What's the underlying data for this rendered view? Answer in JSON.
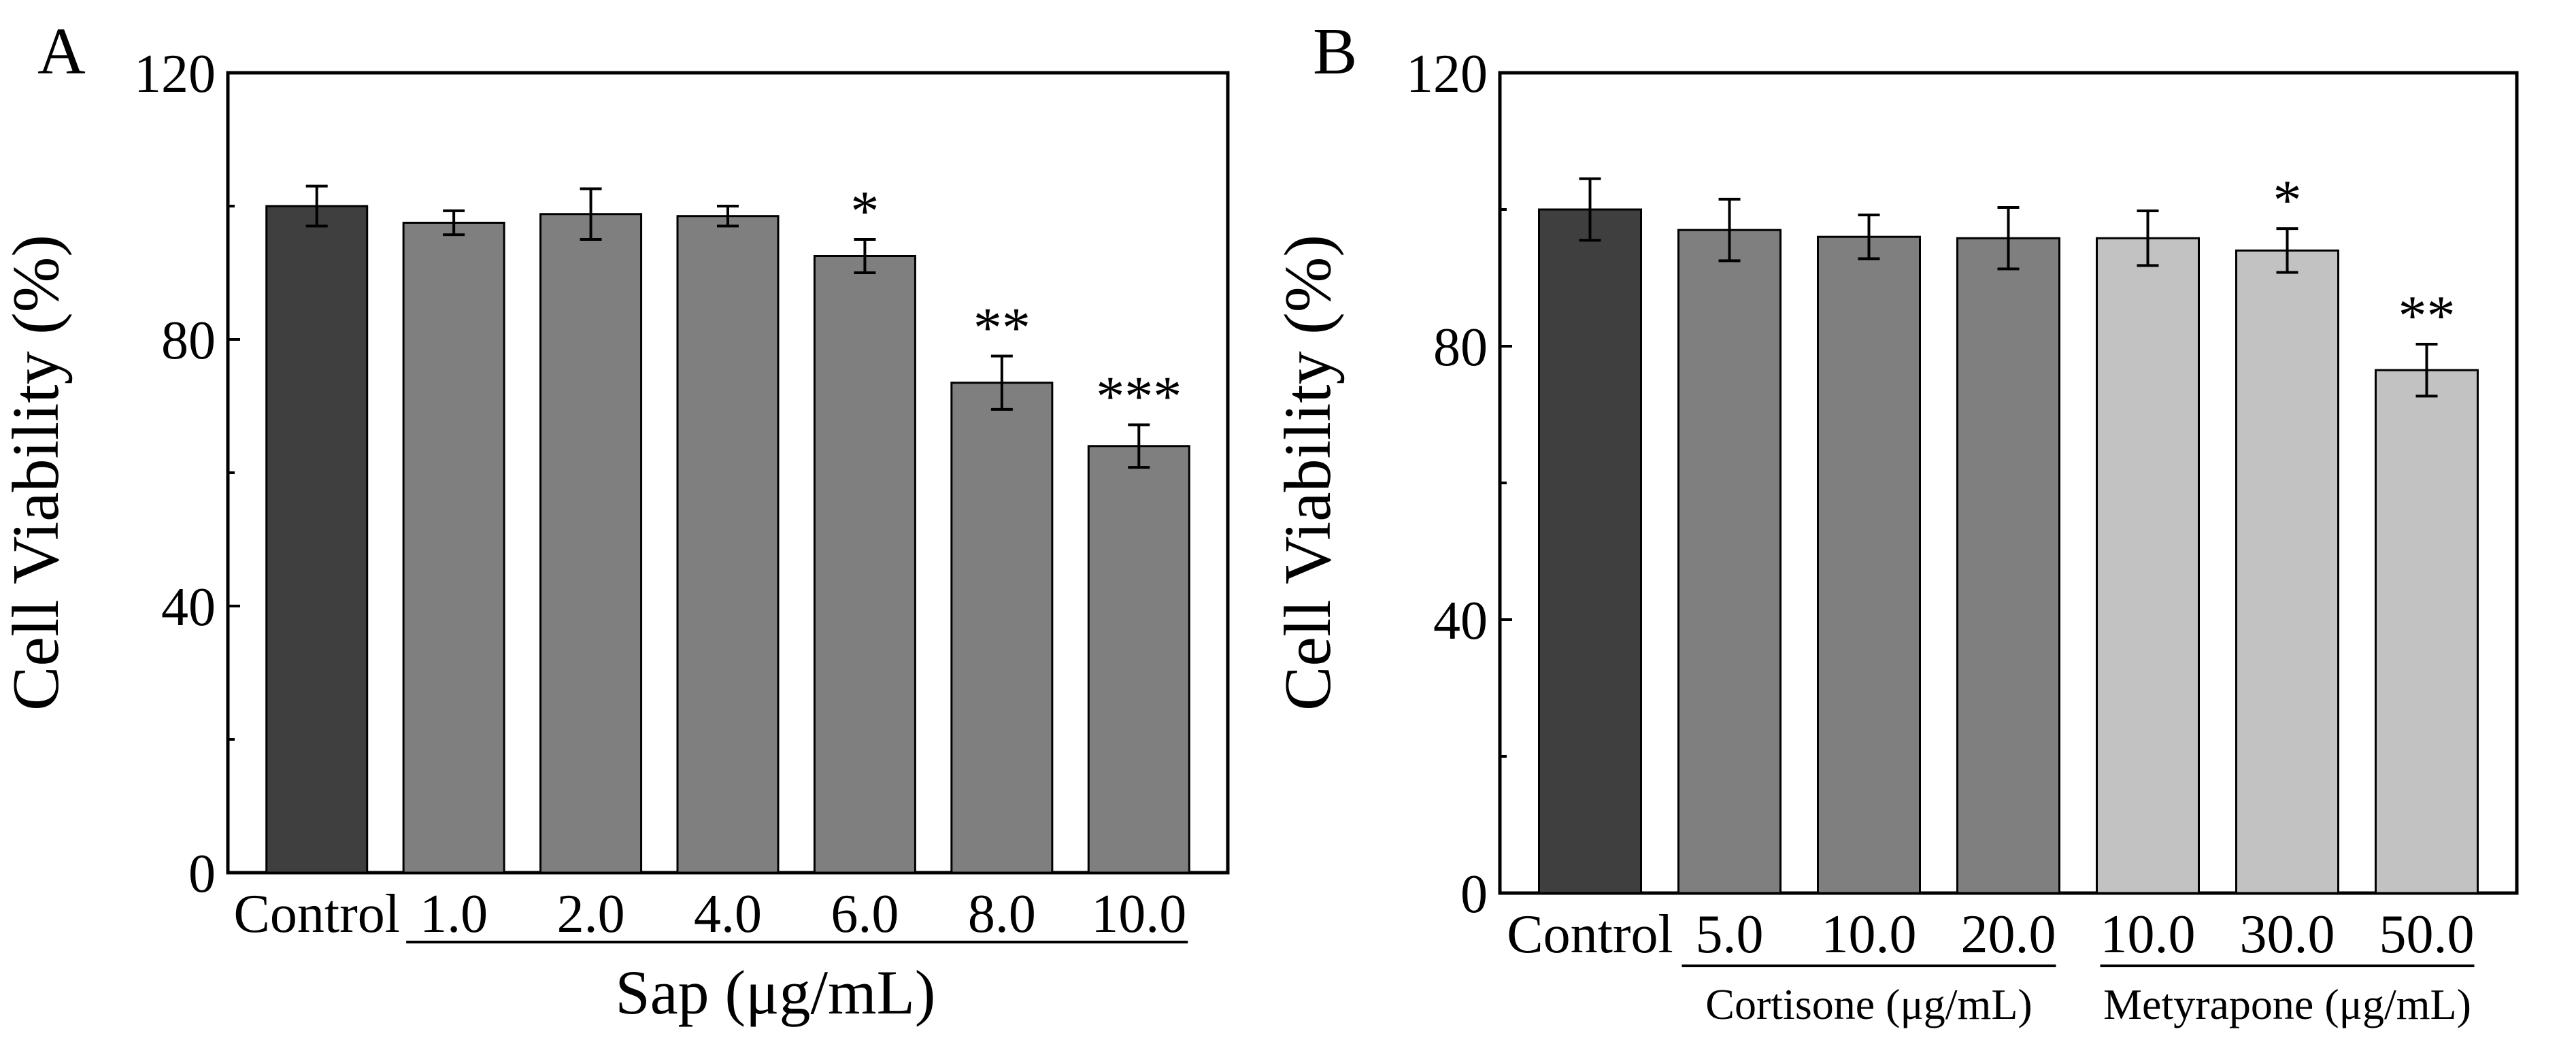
{
  "chart_data": [
    {
      "type": "bar",
      "panel_label": "A",
      "ylabel": "Cell Viability (%)",
      "ylim": [
        0,
        120
      ],
      "yticks": [
        "0",
        "40",
        "80",
        "120"
      ],
      "xlabel": "Sap (μg/mL)",
      "categories": [
        "Control",
        "1.0",
        "2.0",
        "4.0",
        "6.0",
        "8.0",
        "10.0"
      ],
      "values": [
        100,
        97.5,
        98.8,
        98.5,
        92.5,
        73.5,
        64.0
      ],
      "errors": [
        3.0,
        1.8,
        3.8,
        1.5,
        2.5,
        4.0,
        3.2
      ],
      "significance": [
        "",
        "",
        "",
        "",
        "*",
        "**",
        "***"
      ],
      "bar_colors": [
        "#3f3f3f",
        "#7f7f7f",
        "#7f7f7f",
        "#7f7f7f",
        "#7f7f7f",
        "#7f7f7f",
        "#7f7f7f"
      ]
    },
    {
      "type": "bar",
      "panel_label": "B",
      "ylabel": "Cell Viability (%)",
      "ylim": [
        0,
        120
      ],
      "yticks": [
        "0",
        "40",
        "80",
        "120"
      ],
      "categories": [
        "Control",
        "5.0",
        "10.0",
        "20.0",
        "10.0",
        "30.0",
        "50.0"
      ],
      "values": [
        100,
        97.0,
        96.0,
        95.8,
        95.8,
        94.0,
        76.5
      ],
      "errors": [
        4.5,
        4.5,
        3.2,
        4.5,
        4.0,
        3.2,
        3.8
      ],
      "significance": [
        "",
        "",
        "",
        "",
        "",
        "*",
        "**"
      ],
      "bar_colors": [
        "#3f3f3f",
        "#7f7f7f",
        "#7f7f7f",
        "#7f7f7f",
        "#c2c2c2",
        "#c2c2c2",
        "#c2c2c2"
      ],
      "groups": [
        {
          "label": "Cortisone (μg/mL)",
          "from": 1,
          "to": 3
        },
        {
          "label": "Metyrapone (μg/mL)",
          "from": 4,
          "to": 6
        }
      ]
    }
  ],
  "colors": {
    "axis": "#000000",
    "bar_edge": "#000000",
    "control": "#3f3f3f",
    "treatment": "#7f7f7f",
    "light": "#c2c2c2"
  }
}
